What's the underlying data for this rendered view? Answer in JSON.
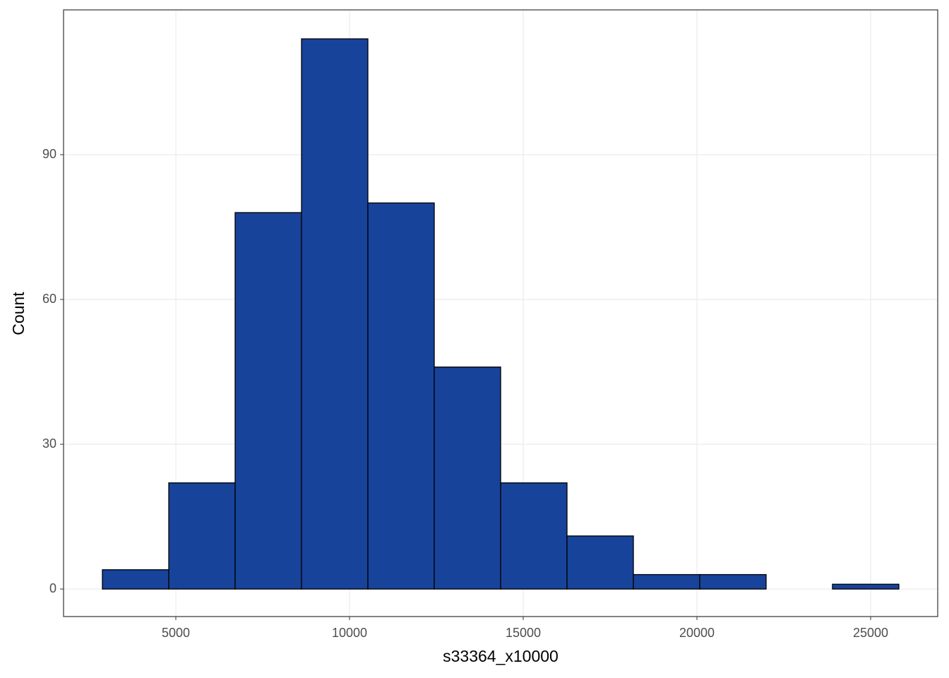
{
  "chart_data": {
    "type": "histogram",
    "x_label": "s33364_x10000",
    "y_label": "Count",
    "bins": [
      2886,
      4797,
      6707,
      8618,
      10528,
      12439,
      14350,
      16260,
      18171,
      20081,
      21992,
      23902,
      25813
    ],
    "values": [
      4,
      22,
      78,
      114,
      80,
      46,
      22,
      11,
      3,
      3,
      0,
      1
    ],
    "color": "#17439a",
    "edge_color": "#000000",
    "xlim": [
      1768,
      26931
    ],
    "ylim": [
      -5.7,
      120
    ],
    "xticks": [
      5000,
      10000,
      15000,
      20000,
      25000
    ],
    "yticks": [
      0,
      30,
      60,
      90
    ],
    "grid": true
  }
}
